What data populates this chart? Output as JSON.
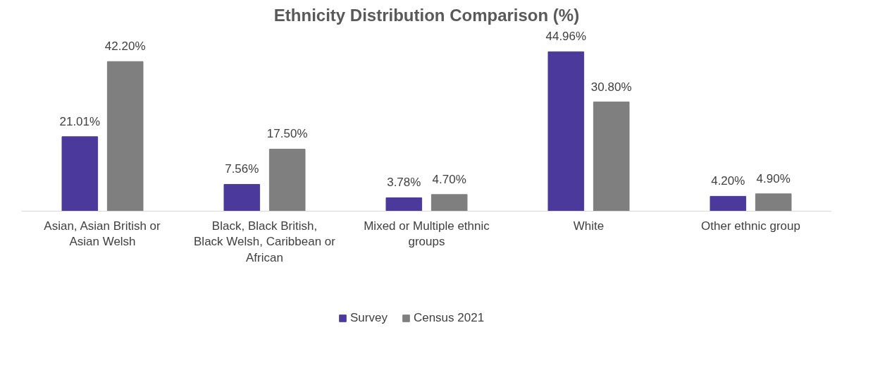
{
  "chart_data": {
    "type": "bar",
    "title": "Ethnicity Distribution Comparison (%)",
    "categories": [
      "Asian, Asian British or Asian Welsh",
      "Black, Black British, Black Welsh, Caribbean or African",
      "Mixed or Multiple ethnic groups",
      "White",
      "Other ethnic group"
    ],
    "series": [
      {
        "name": "Survey",
        "color": "#4b3a9c",
        "values": [
          21.01,
          7.56,
          3.78,
          44.96,
          4.2
        ],
        "value_labels": [
          "21.01%",
          "7.56%",
          "3.78%",
          "44.96%",
          "4.20%"
        ]
      },
      {
        "name": "Census 2021",
        "color": "#7f7f7f",
        "values": [
          42.2,
          17.5,
          4.7,
          30.8,
          4.9
        ],
        "value_labels": [
          "42.20%",
          "17.50%",
          "4.70%",
          "30.80%",
          "4.90%"
        ]
      }
    ],
    "legend": "bottom"
  }
}
